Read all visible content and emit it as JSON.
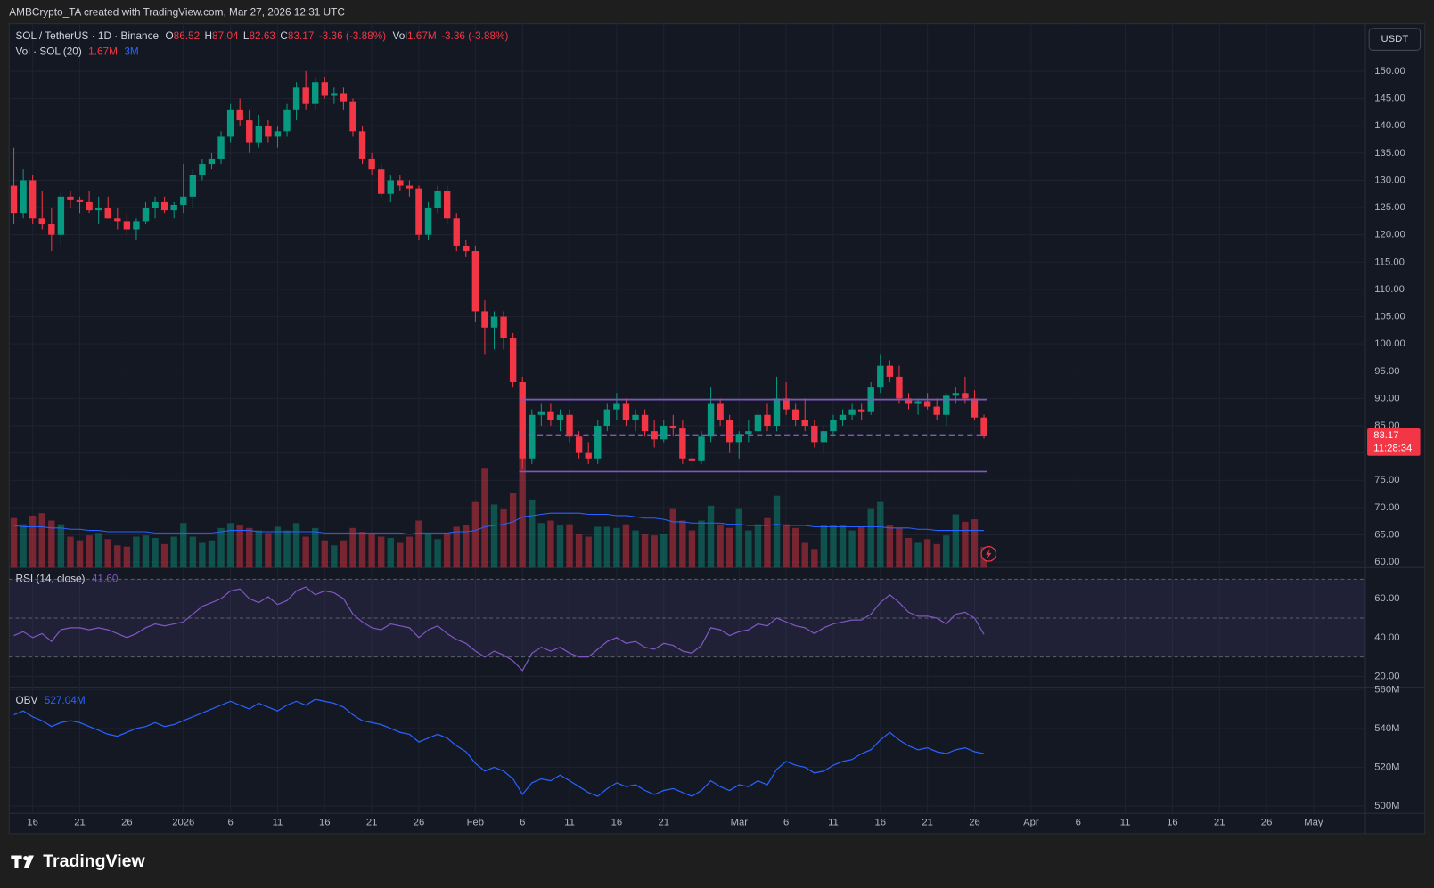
{
  "header": {
    "title": "AMBCrypto_TA created with TradingView.com, Mar 27, 2026 12:31 UTC"
  },
  "footer": {
    "logo": "TradingView"
  },
  "chart_data": {
    "type": "candlestick",
    "symbol": "SOL / TetherUS · 1D · Binance",
    "currency": "USDT",
    "legend_labels": {
      "open": "O",
      "high": "H",
      "low": "L",
      "close": "C",
      "change": "-3.36 (-3.88%)",
      "vol": "Vol",
      "vol_change": "-3.36 (-3.88%)"
    },
    "x": [
      "2025-12-14",
      "2025-12-15",
      "2025-12-16",
      "2025-12-17",
      "2025-12-18",
      "2025-12-19",
      "2025-12-20",
      "2025-12-21",
      "2025-12-22",
      "2025-12-23",
      "2025-12-24",
      "2025-12-25",
      "2025-12-26",
      "2025-12-27",
      "2025-12-28",
      "2025-12-29",
      "2025-12-30",
      "2025-12-31",
      "2026-01-01",
      "2026-01-02",
      "2026-01-03",
      "2026-01-04",
      "2026-01-05",
      "2026-01-06",
      "2026-01-07",
      "2026-01-08",
      "2026-01-09",
      "2026-01-10",
      "2026-01-11",
      "2026-01-12",
      "2026-01-13",
      "2026-01-14",
      "2026-01-15",
      "2026-01-16",
      "2026-01-17",
      "2026-01-18",
      "2026-01-19",
      "2026-01-20",
      "2026-01-21",
      "2026-01-22",
      "2026-01-23",
      "2026-01-24",
      "2026-01-25",
      "2026-01-26",
      "2026-01-27",
      "2026-01-28",
      "2026-01-29",
      "2026-01-30",
      "2026-01-31",
      "2026-02-01",
      "2026-02-02",
      "2026-02-03",
      "2026-02-04",
      "2026-02-05",
      "2026-02-06",
      "2026-02-07",
      "2026-02-08",
      "2026-02-09",
      "2026-02-10",
      "2026-02-11",
      "2026-02-12",
      "2026-02-13",
      "2026-02-14",
      "2026-02-15",
      "2026-02-16",
      "2026-02-17",
      "2026-02-18",
      "2026-02-19",
      "2026-02-20",
      "2026-02-21",
      "2026-02-22",
      "2026-02-23",
      "2026-02-24",
      "2026-02-25",
      "2026-02-26",
      "2026-02-27",
      "2026-02-28",
      "2026-03-01",
      "2026-03-02",
      "2026-03-03",
      "2026-03-04",
      "2026-03-05",
      "2026-03-06",
      "2026-03-07",
      "2026-03-08",
      "2026-03-09",
      "2026-03-10",
      "2026-03-11",
      "2026-03-12",
      "2026-03-13",
      "2026-03-14",
      "2026-03-15",
      "2026-03-16",
      "2026-03-17",
      "2026-03-18",
      "2026-03-19",
      "2026-03-20",
      "2026-03-21",
      "2026-03-22",
      "2026-03-23",
      "2026-03-24",
      "2026-03-25",
      "2026-03-26",
      "2026-03-27"
    ],
    "xlim": [
      "2025-12-14",
      "2026-05-07"
    ],
    "xticks": [
      {
        "value": "2025-12-16",
        "label": "16"
      },
      {
        "value": "2025-12-21",
        "label": "21"
      },
      {
        "value": "2025-12-26",
        "label": "26"
      },
      {
        "value": "2026-01-01",
        "label": "2026"
      },
      {
        "value": "2026-01-06",
        "label": "6"
      },
      {
        "value": "2026-01-11",
        "label": "11"
      },
      {
        "value": "2026-01-16",
        "label": "16"
      },
      {
        "value": "2026-01-21",
        "label": "21"
      },
      {
        "value": "2026-01-26",
        "label": "26"
      },
      {
        "value": "2026-02-01",
        "label": "Feb"
      },
      {
        "value": "2026-02-06",
        "label": "6"
      },
      {
        "value": "2026-02-11",
        "label": "11"
      },
      {
        "value": "2026-02-16",
        "label": "16"
      },
      {
        "value": "2026-02-21",
        "label": "21"
      },
      {
        "value": "2026-03-01",
        "label": "Mar"
      },
      {
        "value": "2026-03-06",
        "label": "6"
      },
      {
        "value": "2026-03-11",
        "label": "11"
      },
      {
        "value": "2026-03-16",
        "label": "16"
      },
      {
        "value": "2026-03-21",
        "label": "21"
      },
      {
        "value": "2026-03-26",
        "label": "26"
      },
      {
        "value": "2026-04-01",
        "label": "Apr"
      },
      {
        "value": "2026-04-06",
        "label": "6"
      },
      {
        "value": "2026-04-11",
        "label": "11"
      },
      {
        "value": "2026-04-16",
        "label": "16"
      },
      {
        "value": "2026-04-21",
        "label": "21"
      },
      {
        "value": "2026-04-26",
        "label": "26"
      },
      {
        "value": "2026-05-01",
        "label": "May"
      }
    ],
    "candles": {
      "open": [
        129,
        124,
        130,
        123,
        122,
        120,
        127,
        126.5,
        126,
        124.5,
        125,
        123,
        122.5,
        121,
        122.5,
        125,
        126,
        124.5,
        125.5,
        127,
        131,
        133,
        134,
        138,
        143,
        141,
        137,
        140,
        138,
        139,
        143,
        147,
        144,
        148,
        145.5,
        146,
        144.5,
        139,
        134,
        132,
        127.5,
        130,
        129,
        128.5,
        120,
        125,
        128,
        123,
        118,
        117,
        106,
        103,
        105,
        101,
        93,
        79,
        87,
        87.5,
        86,
        87,
        83,
        80,
        79,
        85,
        88,
        89,
        86,
        87,
        84,
        82.5,
        85,
        84.5,
        79,
        78.5,
        83,
        89,
        86,
        82,
        83.5,
        84,
        87,
        85,
        90,
        88,
        86,
        85,
        82,
        84,
        86,
        87,
        88,
        87.5,
        92,
        96,
        94,
        90,
        89,
        89.5,
        88.5,
        87,
        90.5,
        91,
        90,
        86.52
      ],
      "high": [
        136,
        132,
        131,
        128,
        125,
        128,
        128,
        127,
        128,
        127,
        127,
        125,
        124,
        123,
        126,
        127,
        127,
        126,
        133,
        132,
        134,
        135,
        139,
        144,
        145,
        143,
        142,
        141,
        140,
        144,
        148,
        150,
        149,
        149,
        147,
        147,
        145,
        140,
        135,
        133,
        131,
        131,
        130,
        129,
        126,
        129,
        129,
        124,
        119,
        118,
        108,
        106,
        106,
        102,
        94,
        88,
        89,
        89,
        88,
        88,
        84,
        82,
        86,
        89,
        91,
        90,
        88,
        88,
        86,
        86,
        87,
        86,
        80,
        84,
        92,
        90,
        87,
        84,
        86,
        88,
        89,
        94,
        93,
        89,
        90,
        86,
        85,
        87,
        88,
        89,
        89,
        93,
        98,
        97,
        96,
        91,
        90,
        91,
        90,
        91,
        92,
        94,
        91.5,
        87.04
      ],
      "low": [
        122,
        123,
        122,
        121,
        117,
        118,
        125,
        124,
        124,
        122,
        123,
        121,
        120,
        119,
        122,
        123,
        124,
        123,
        124,
        125,
        130,
        132,
        133,
        137,
        140,
        135,
        136,
        137,
        136,
        138,
        141,
        143,
        143,
        145,
        144,
        143,
        138,
        133,
        131,
        127,
        126,
        128,
        127,
        119,
        119,
        124,
        122,
        117,
        116,
        104,
        98,
        99,
        99,
        92,
        77,
        78,
        85,
        85,
        84,
        82,
        79,
        78,
        78,
        84,
        86,
        85,
        84,
        83,
        81,
        82,
        83,
        78,
        77,
        78,
        82,
        85,
        80,
        79,
        82,
        83,
        84,
        84,
        87,
        85,
        84,
        81,
        80,
        83,
        85,
        86,
        86,
        87,
        91,
        93,
        89,
        88,
        87,
        88,
        86,
        85,
        89,
        89,
        86,
        82.63
      ],
      "close": [
        124,
        130,
        123,
        122,
        120,
        127,
        126.5,
        126,
        124.5,
        125,
        123,
        122.5,
        121,
        122.5,
        125,
        126,
        124.5,
        125.5,
        127,
        131,
        133,
        134,
        138,
        143,
        141,
        137,
        140,
        138,
        139,
        143,
        147,
        144,
        148,
        145.5,
        146,
        144.5,
        139,
        134,
        132,
        127.5,
        130,
        129,
        128.5,
        120,
        125,
        128,
        123,
        118,
        117,
        106,
        103,
        105,
        101,
        93,
        79,
        87,
        87.5,
        86,
        87,
        83,
        80,
        79,
        85,
        88,
        89,
        86,
        87,
        84,
        82.5,
        85,
        84.5,
        79,
        78.5,
        83,
        89,
        86,
        82,
        83.5,
        84,
        87,
        85,
        90,
        88,
        86,
        85,
        82,
        84,
        86,
        87,
        88,
        87.5,
        92,
        96,
        94,
        90,
        89,
        89.5,
        88.5,
        87,
        90.5,
        91,
        90,
        86.52,
        83.17
      ],
      "up_color": "#089981",
      "down_color": "#f23645"
    },
    "ylim": [
      59,
      158.7
    ],
    "yticks": [
      {
        "value": 60,
        "label": "60.00"
      },
      {
        "value": 65,
        "label": "65.00"
      },
      {
        "value": 70,
        "label": "70.00"
      },
      {
        "value": 75,
        "label": "75.00"
      },
      {
        "value": 80,
        "label": "80.00"
      },
      {
        "value": 85,
        "label": "85.00"
      },
      {
        "value": 90,
        "label": "90.00"
      },
      {
        "value": 95,
        "label": "95.00"
      },
      {
        "value": 100,
        "label": "100.00"
      },
      {
        "value": 105,
        "label": "105.00"
      },
      {
        "value": 110,
        "label": "110.00"
      },
      {
        "value": 115,
        "label": "115.00"
      },
      {
        "value": 120,
        "label": "120.00"
      },
      {
        "value": 125,
        "label": "125.00"
      },
      {
        "value": 130,
        "label": "130.00"
      },
      {
        "value": 135,
        "label": "135.00"
      },
      {
        "value": 140,
        "label": "140.00"
      },
      {
        "value": 145,
        "label": "145.00"
      },
      {
        "value": 150,
        "label": "150.00"
      }
    ],
    "grid": true,
    "last_price": {
      "countdown": "11:28:34"
    },
    "levels": {
      "color": "#7e57c2",
      "items": [
        {
          "value": 89.8,
          "style": "solid",
          "from": "2026-02-06",
          "to": "2026-03-27"
        },
        {
          "value": 83.3,
          "style": "dashed",
          "from": "2026-02-06",
          "to": "2026-03-27"
        },
        {
          "value": 76.6,
          "style": "solid",
          "from": "2026-02-06",
          "to": "2026-03-27"
        }
      ]
    },
    "volume": {
      "title": "Vol · SOL (20)",
      "last_label": "1.67M",
      "ylim": [
        0,
        40
      ],
      "values": [
        4,
        3.5,
        4.2,
        4.4,
        3.8,
        3.5,
        2.5,
        2.2,
        2.6,
        2.8,
        2.3,
        1.8,
        1.7,
        2.5,
        2.6,
        2.4,
        1.9,
        2.5,
        3.6,
        2.5,
        2.0,
        2.2,
        3.2,
        3.6,
        3.4,
        3.2,
        3.0,
        2.8,
        3.3,
        3.0,
        3.6,
        2.5,
        3.2,
        2.2,
        1.8,
        2.2,
        3.2,
        2.9,
        2.7,
        2.5,
        2.4,
        2.0,
        2.5,
        3.8,
        2.7,
        2.3,
        2.8,
        3.3,
        3.4,
        5.3,
        8,
        5.1,
        4.7,
        6,
        10,
        5.5,
        3.6,
        3.8,
        3.4,
        3.5,
        2.7,
        2.5,
        3.3,
        3.3,
        3.2,
        3.5,
        3.0,
        2.7,
        2.6,
        2.7,
        4.8,
        3.8,
        3.0,
        3.8,
        5.0,
        3.5,
        3.2,
        4.8,
        3.0,
        3.5,
        4.0,
        5.8,
        3.5,
        3.2,
        2.0,
        1.5,
        3.4,
        3.4,
        3.4,
        3.0,
        3.3,
        4.8,
        5.3,
        3.4,
        3.2,
        2.4,
        2.0,
        2.3,
        1.9,
        2.6,
        4.3,
        3.7,
        3.9,
        1.67
      ],
      "ma": {
        "label": "3M",
        "color": "#2962ff",
        "values": [
          3.4,
          3.3,
          3.3,
          3.3,
          3.2,
          3.2,
          3.1,
          3.1,
          3.0,
          3.0,
          2.9,
          2.9,
          2.9,
          2.9,
          2.9,
          2.8,
          2.8,
          2.8,
          2.8,
          2.8,
          2.8,
          2.8,
          2.9,
          3.0,
          3.0,
          3.0,
          2.9,
          2.9,
          2.9,
          2.9,
          2.9,
          2.9,
          2.9,
          2.8,
          2.8,
          2.8,
          2.8,
          2.8,
          2.8,
          2.8,
          2.8,
          2.8,
          2.7,
          2.8,
          2.8,
          2.8,
          2.8,
          2.9,
          2.9,
          3.0,
          3.3,
          3.4,
          3.5,
          3.7,
          4.1,
          4.2,
          4.3,
          4.4,
          4.4,
          4.4,
          4.4,
          4.3,
          4.3,
          4.3,
          4.2,
          4.2,
          4.1,
          4.0,
          4.0,
          3.9,
          3.7,
          3.7,
          3.6,
          3.6,
          3.6,
          3.6,
          3.5,
          3.5,
          3.4,
          3.4,
          3.4,
          3.5,
          3.4,
          3.4,
          3.4,
          3.3,
          3.3,
          3.3,
          3.3,
          3.3,
          3.3,
          3.3,
          3.3,
          3.2,
          3.2,
          3.2,
          3.1,
          3.1,
          3.0,
          3.0,
          3.0,
          3.0,
          3.0,
          3.0
        ]
      }
    },
    "rsi": {
      "title": "RSI (14, close)",
      "last_label": "41.60",
      "color": "#7e57c2",
      "ylim": [
        14.4,
        76
      ],
      "bands": [
        70,
        50,
        30
      ],
      "yticks": [
        {
          "value": 20,
          "label": "20.00"
        },
        {
          "value": 40,
          "label": "40.00"
        },
        {
          "value": 60,
          "label": "60.00"
        }
      ],
      "values": [
        41,
        43,
        40,
        42,
        38,
        44,
        45,
        45,
        44,
        45,
        44,
        42,
        40,
        42,
        45,
        47,
        46,
        47,
        48,
        52,
        56,
        58,
        60,
        64,
        65,
        60,
        58,
        61,
        57,
        59,
        64,
        66,
        62,
        64,
        63,
        60,
        52,
        48,
        45,
        44,
        47,
        46,
        45,
        40,
        44,
        46,
        42,
        39,
        37,
        33,
        30,
        33,
        31,
        28,
        23,
        32,
        35,
        33,
        35,
        32,
        30,
        30,
        34,
        38,
        40,
        37,
        38,
        35,
        34,
        37,
        36,
        33,
        32,
        36,
        45,
        44,
        41,
        43,
        44,
        47,
        46,
        50,
        48,
        46,
        45,
        42,
        45,
        47,
        48,
        49,
        49,
        52,
        58,
        62,
        58,
        53,
        51,
        51,
        50,
        47,
        52,
        53,
        50,
        41.6
      ]
    },
    "obv": {
      "title": "OBV",
      "last_label": "527.04M",
      "color": "#2962ff",
      "ylim": [
        496.2,
        561.2
      ],
      "yticks": [
        {
          "value": 500,
          "label": "500M"
        },
        {
          "value": 520,
          "label": "520M"
        },
        {
          "value": 540,
          "label": "540M"
        },
        {
          "value": 560,
          "label": "560M"
        }
      ],
      "values": [
        547,
        549,
        546,
        544,
        541,
        543,
        544,
        543,
        541,
        539,
        537,
        536,
        538,
        540,
        541,
        543,
        541,
        542,
        544,
        546,
        548,
        550,
        552,
        554,
        552,
        550,
        553,
        551,
        549,
        552,
        554,
        552,
        555,
        554,
        553,
        551,
        547,
        544,
        543,
        542,
        540,
        538,
        537,
        533,
        535,
        537,
        535,
        531,
        528,
        522,
        518,
        520,
        518,
        514,
        506,
        512,
        514,
        513,
        516,
        513,
        510,
        507,
        505,
        509,
        512,
        510,
        511,
        508,
        506,
        508,
        509,
        507,
        505,
        508,
        513,
        510,
        508,
        511,
        510,
        513,
        511,
        519,
        523,
        521,
        520,
        517,
        518,
        521,
        523,
        524,
        527,
        529,
        534,
        538,
        534,
        531,
        529,
        530,
        528,
        527,
        529,
        530,
        528,
        527.04
      ]
    }
  }
}
